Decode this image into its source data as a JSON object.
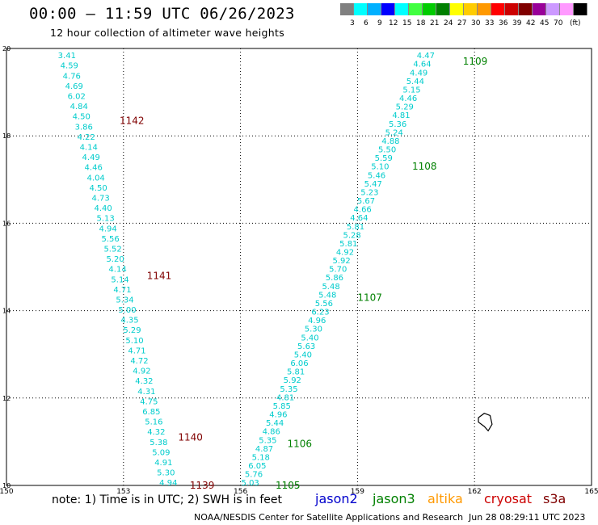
{
  "header": {
    "title": "00:00 – 11:59 UTC 06/26/2023",
    "subtitle": "12 hour collection of altimeter wave heights"
  },
  "legend": {
    "colors": [
      "#808080",
      "#00ffff",
      "#00b0ff",
      "#0000ff",
      "#00ffff",
      "#40ff40",
      "#00cc00",
      "#008000",
      "#ffff00",
      "#ffcc00",
      "#ff9900",
      "#ff0000",
      "#cc0000",
      "#800000",
      "#990099",
      "#cc99ff",
      "#ff99ff",
      "#000000"
    ],
    "labels": [
      "3",
      "6",
      "9",
      "12",
      "15",
      "18",
      "21",
      "24",
      "27",
      "30",
      "33",
      "36",
      "39",
      "42",
      "45",
      "70"
    ],
    "unit": "(ft)"
  },
  "map": {
    "lon_range": [
      150,
      165
    ],
    "lat_range": [
      10,
      20
    ],
    "x_ticks": [
      "150",
      "153",
      "156",
      "159",
      "162",
      "165"
    ],
    "y_ticks": [
      "10",
      "12",
      "14",
      "16",
      "18",
      "20"
    ],
    "land": [
      [
        162.1,
        11.55
      ],
      [
        162.25,
        11.65
      ],
      [
        162.4,
        11.6
      ],
      [
        162.45,
        11.4
      ],
      [
        162.35,
        11.25
      ],
      [
        162.25,
        11.35
      ],
      [
        162.1,
        11.45
      ]
    ]
  },
  "tracks": [
    {
      "id": "west",
      "sample_color": "#00cccc",
      "start": [
        151.55,
        19.85
      ],
      "end": [
        154.15,
        10.07
      ],
      "values": [
        "3.41",
        "4.59",
        "4.76",
        "4.69",
        "6.02",
        "4.84",
        "4.50",
        "3.86",
        "4.22",
        "4.14",
        "4.49",
        "4.46",
        "4.04",
        "4.50",
        "4.73",
        "4.40",
        "5.13",
        "4.94",
        "5.56",
        "5.52",
        "5.20",
        "4.14",
        "5.14",
        "4.71",
        "5.34",
        "5.00",
        "4.35",
        "5.29",
        "5.10",
        "4.71",
        "4.72",
        "4.92",
        "4.32",
        "4.31",
        "4.75",
        "6.85",
        "5.16",
        "4.32",
        "5.38",
        "5.09",
        "4.91",
        "5.30",
        "4.94"
      ]
    },
    {
      "id": "east",
      "sample_color": "#00cccc",
      "start": [
        160.75,
        19.85
      ],
      "end": [
        156.25,
        10.07
      ],
      "values": [
        "4.47",
        "4.64",
        "4.49",
        "5.44",
        "5.15",
        "4.46",
        "5.29",
        "4.81",
        "5.36",
        "5.24",
        "4.88",
        "5.50",
        "5.59",
        "5.10",
        "5.46",
        "5.47",
        "5.23",
        "5.67",
        "4.66",
        "4.64",
        "5.81",
        "5.28",
        "5.81",
        "4.92",
        "5.92",
        "5.70",
        "5.86",
        "5.48",
        "5.48",
        "5.56",
        "6.23",
        "4.96",
        "5.30",
        "5.40",
        "5.63",
        "5.40",
        "6.06",
        "5.81",
        "5.92",
        "5.35",
        "4.81",
        "5.85",
        "4.96",
        "5.44",
        "4.86",
        "5.35",
        "4.87",
        "5.18",
        "6.05",
        "5.76",
        "5.03"
      ]
    }
  ],
  "passes": [
    {
      "label": "1142",
      "lon": 152.9,
      "lat": 18.35,
      "color": "#800000"
    },
    {
      "label": "1141",
      "lon": 153.6,
      "lat": 14.8,
      "color": "#800000"
    },
    {
      "label": "1140",
      "lon": 154.4,
      "lat": 11.1,
      "color": "#800000"
    },
    {
      "label": "1139",
      "lon": 154.7,
      "lat": 10.0,
      "color": "#800000"
    },
    {
      "label": "1109",
      "lon": 161.7,
      "lat": 19.7,
      "color": "#008000"
    },
    {
      "label": "1108",
      "lon": 160.4,
      "lat": 17.3,
      "color": "#008000"
    },
    {
      "label": "1107",
      "lon": 159.0,
      "lat": 14.3,
      "color": "#008000"
    },
    {
      "label": "1106",
      "lon": 157.2,
      "lat": 10.95,
      "color": "#008000"
    },
    {
      "label": "1105",
      "lon": 156.9,
      "lat": 10.0,
      "color": "#008000"
    }
  ],
  "footer": {
    "note": "note: 1) Time is in UTC; 2) SWH is in feet",
    "satellites": [
      {
        "name": "jason2",
        "color": "#0000cc"
      },
      {
        "name": "jason3",
        "color": "#008000"
      },
      {
        "name": "altika",
        "color": "#ff9900"
      },
      {
        "name": "cryosat",
        "color": "#cc0000"
      },
      {
        "name": "s3a",
        "color": "#800000"
      }
    ],
    "credit": "NOAA/NESDIS Center for Satellite Applications and Research",
    "timestamp": "Jun 28 08:29:11 UTC 2023"
  }
}
